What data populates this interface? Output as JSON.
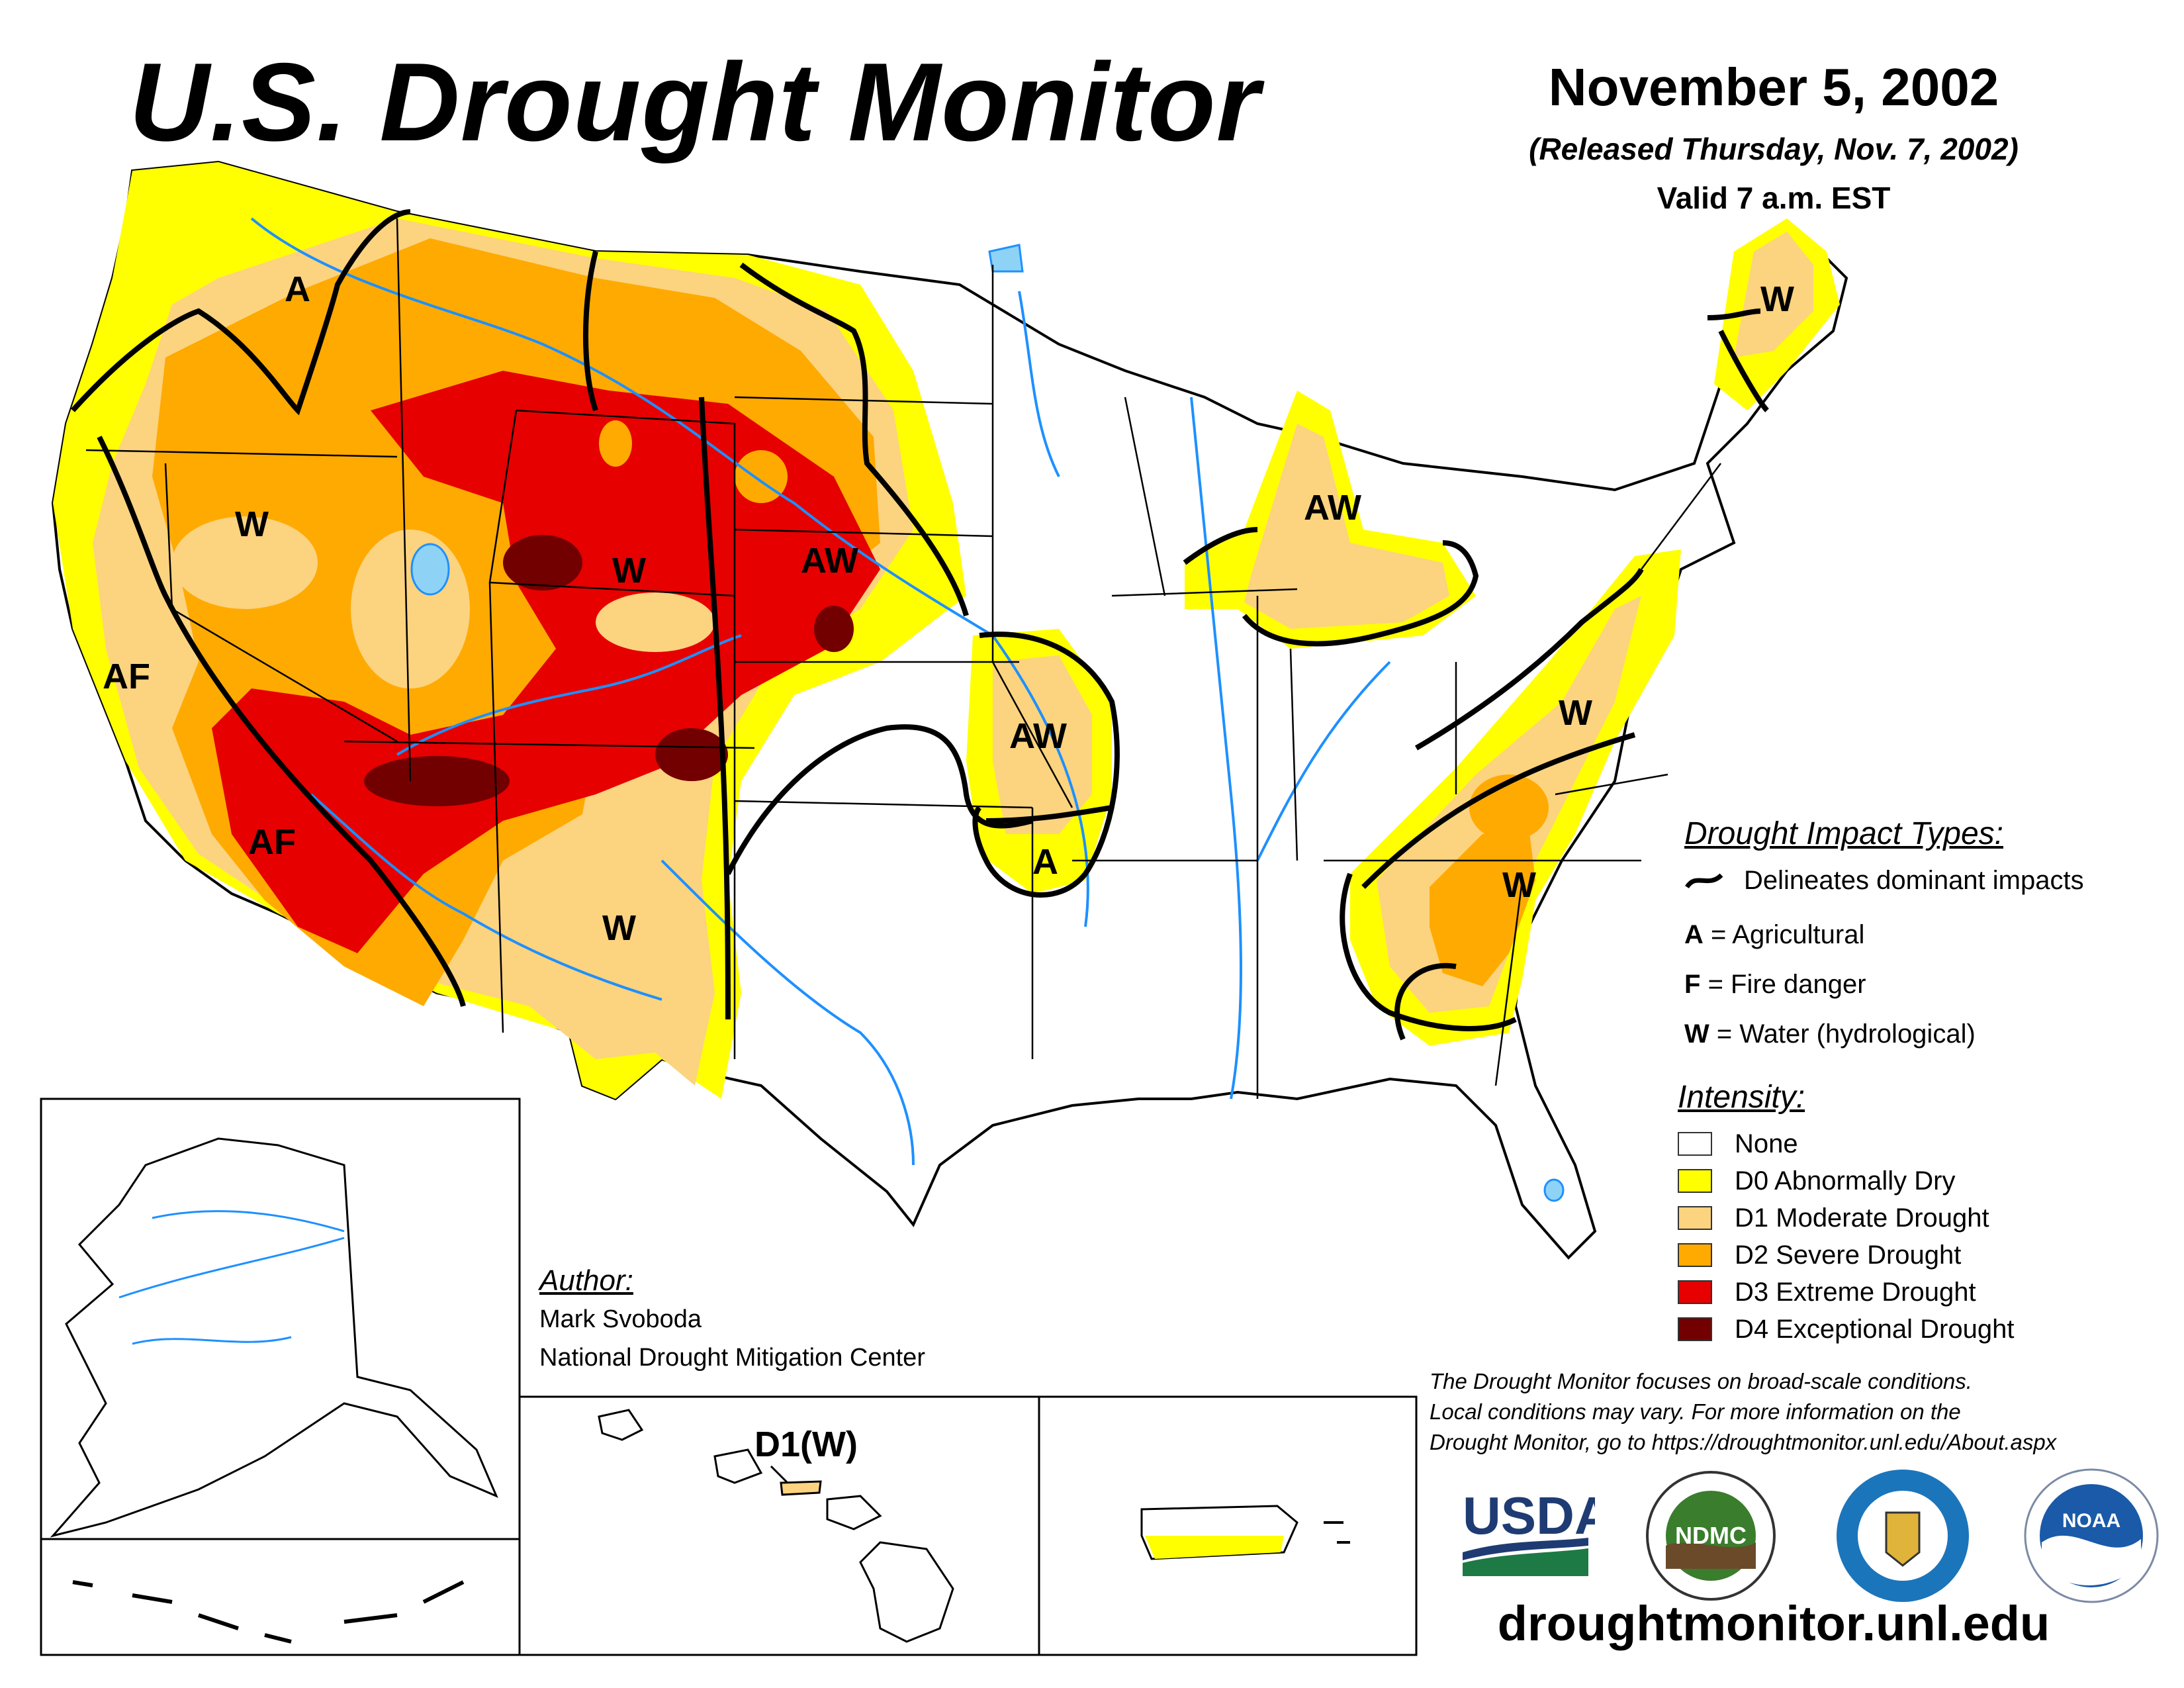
{
  "header": {
    "title": "U.S. Drought Monitor",
    "date": "November 5, 2002",
    "released": "(Released Thursday, Nov. 7, 2002)",
    "valid": "Valid 7 a.m. EST"
  },
  "map_labels": {
    "pnw_a": "A",
    "west_w": "W",
    "wy_w": "W",
    "ne_aw": "AW",
    "ca_af": "AF",
    "az_af": "AF",
    "nm_w": "W",
    "mo_aw": "AW",
    "mo_a": "A",
    "mi_aw": "AW",
    "me_w": "W",
    "va_w": "W",
    "sc_w": "W",
    "hawaii": "D1(W)"
  },
  "impact_legend": {
    "heading": "Drought Impact Types:",
    "delineates": "Delineates dominant impacts",
    "items": [
      {
        "code": "A",
        "text": "= Agricultural"
      },
      {
        "code": "F",
        "text": "= Fire danger"
      },
      {
        "code": "W",
        "text": "= Water (hydrological)"
      }
    ]
  },
  "intensity_legend": {
    "heading": "Intensity:",
    "items": [
      {
        "label": "None",
        "color": "#ffffff"
      },
      {
        "label": "D0 Abnormally Dry",
        "color": "#ffff00"
      },
      {
        "label": "D1 Moderate Drought",
        "color": "#fcd37f"
      },
      {
        "label": "D2 Severe Drought",
        "color": "#ffaa00"
      },
      {
        "label": "D3 Extreme Drought",
        "color": "#e60000"
      },
      {
        "label": "D4 Exceptional Drought",
        "color": "#730000"
      }
    ]
  },
  "author": {
    "heading": "Author:",
    "name": "Mark Svoboda",
    "org": "National Drought Mitigation Center"
  },
  "disclaimer": {
    "line1": "The Drought Monitor focuses on broad-scale conditions.",
    "line2": "Local conditions may vary. For more information on the",
    "line3": "Drought Monitor, go to https://droughtmonitor.unl.edu/About.aspx"
  },
  "logos": {
    "usda": "USDA",
    "ndmc": "NDMC",
    "noaa": "NOAA"
  },
  "footer": {
    "url": "droughtmonitor.unl.edu"
  }
}
